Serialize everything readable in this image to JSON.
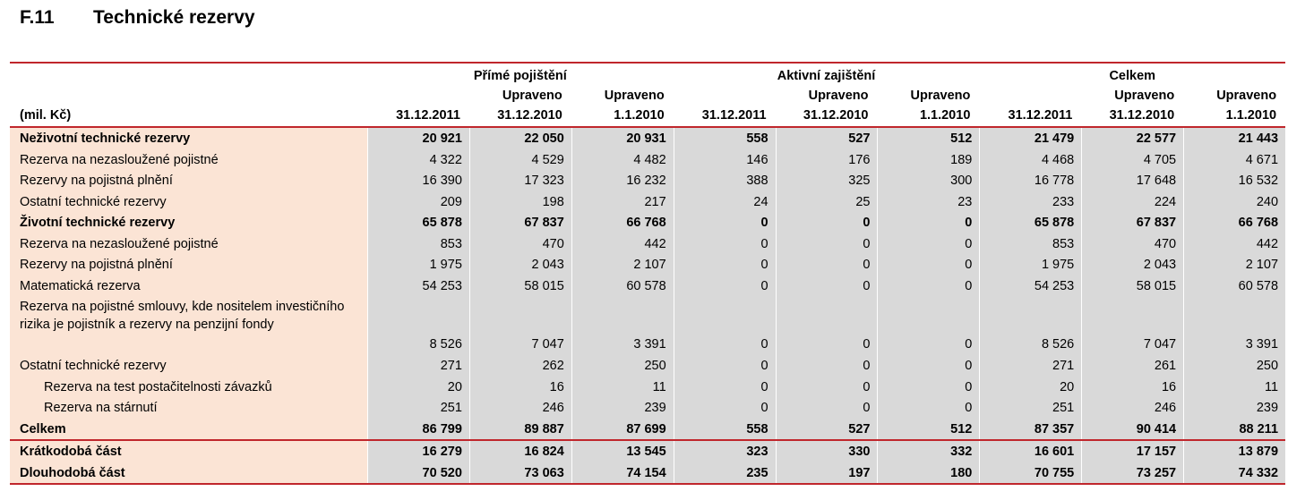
{
  "section": {
    "number": "F.11",
    "title": "Technické rezervy"
  },
  "header": {
    "unit": "(mil. Kč)",
    "groups": [
      "Přímé pojištění",
      "Aktivní zajištění",
      "Celkem"
    ],
    "col_line1": [
      "",
      "Upraveno",
      "Upraveno",
      "",
      "Upraveno",
      "Upraveno",
      "",
      "Upraveno",
      "Upraveno"
    ],
    "col_line2": [
      "31.12.2011",
      "31.12.2010",
      "1.1.2010",
      "31.12.2011",
      "31.12.2010",
      "1.1.2010",
      "31.12.2011",
      "31.12.2010",
      "1.1.2010"
    ]
  },
  "rows": [
    {
      "label": "Neživotní technické rezervy",
      "bold": true,
      "values": [
        "20 921",
        "22 050",
        "20 931",
        "558",
        "527",
        "512",
        "21 479",
        "22 577",
        "21 443"
      ]
    },
    {
      "label": "Rezerva na nezasloužené pojistné",
      "values": [
        "4 322",
        "4 529",
        "4 482",
        "146",
        "176",
        "189",
        "4 468",
        "4 705",
        "4 671"
      ]
    },
    {
      "label": "Rezervy na pojistná plnění",
      "values": [
        "16 390",
        "17 323",
        "16 232",
        "388",
        "325",
        "300",
        "16 778",
        "17 648",
        "16 532"
      ]
    },
    {
      "label": "Ostatní technické rezervy",
      "values": [
        "209",
        "198",
        "217",
        "24",
        "25",
        "23",
        "233",
        "224",
        "240"
      ]
    },
    {
      "label": "Životní technické rezervy",
      "bold": true,
      "values": [
        "65 878",
        "67 837",
        "66 768",
        "0",
        "0",
        "0",
        "65 878",
        "67 837",
        "66 768"
      ]
    },
    {
      "label": "Rezerva na nezasloužené pojistné",
      "values": [
        "853",
        "470",
        "442",
        "0",
        "0",
        "0",
        "853",
        "470",
        "442"
      ]
    },
    {
      "label": "Rezervy na pojistná plnění",
      "values": [
        "1 975",
        "2 043",
        "2 107",
        "0",
        "0",
        "0",
        "1 975",
        "2 043",
        "2 107"
      ]
    },
    {
      "label": "Matematická rezerva",
      "values": [
        "54 253",
        "58 015",
        "60 578",
        "0",
        "0",
        "0",
        "54 253",
        "58 015",
        "60 578"
      ]
    },
    {
      "label": "Rezerva na pojistné smlouvy, kde nositelem investičního rizika je pojistník a rezervy na penzijní fondy",
      "tall": true,
      "values": [
        "8 526",
        "7 047",
        "3 391",
        "0",
        "0",
        "0",
        "8 526",
        "7 047",
        "3 391"
      ]
    },
    {
      "label": "Ostatní technické rezervy",
      "values": [
        "271",
        "262",
        "250",
        "0",
        "0",
        "0",
        "271",
        "261",
        "250"
      ]
    },
    {
      "label": "Rezerva na test postačitelnosti závazků",
      "indent": true,
      "values": [
        "20",
        "16",
        "11",
        "0",
        "0",
        "0",
        "20",
        "16",
        "11"
      ]
    },
    {
      "label": "Rezerva na stárnutí",
      "indent": true,
      "values": [
        "251",
        "246",
        "239",
        "0",
        "0",
        "0",
        "251",
        "246",
        "239"
      ]
    },
    {
      "label": "Celkem",
      "bold": true,
      "values": [
        "86 799",
        "89 887",
        "87 699",
        "558",
        "527",
        "512",
        "87 357",
        "90 414",
        "88 211"
      ]
    },
    {
      "label": "Krátkodobá část",
      "bold": true,
      "sep": true,
      "values": [
        "16 279",
        "16 824",
        "13 545",
        "323",
        "330",
        "332",
        "16 601",
        "17 157",
        "13 879"
      ]
    },
    {
      "label": "Dlouhodobá část",
      "bold": true,
      "values": [
        "70 520",
        "73 063",
        "74 154",
        "235",
        "197",
        "180",
        "70 755",
        "73 257",
        "74 332"
      ]
    }
  ],
  "colors": {
    "rule": "#c0262c",
    "label_bg": "#fbe4d5",
    "value_bg": "#d9d9d9"
  }
}
